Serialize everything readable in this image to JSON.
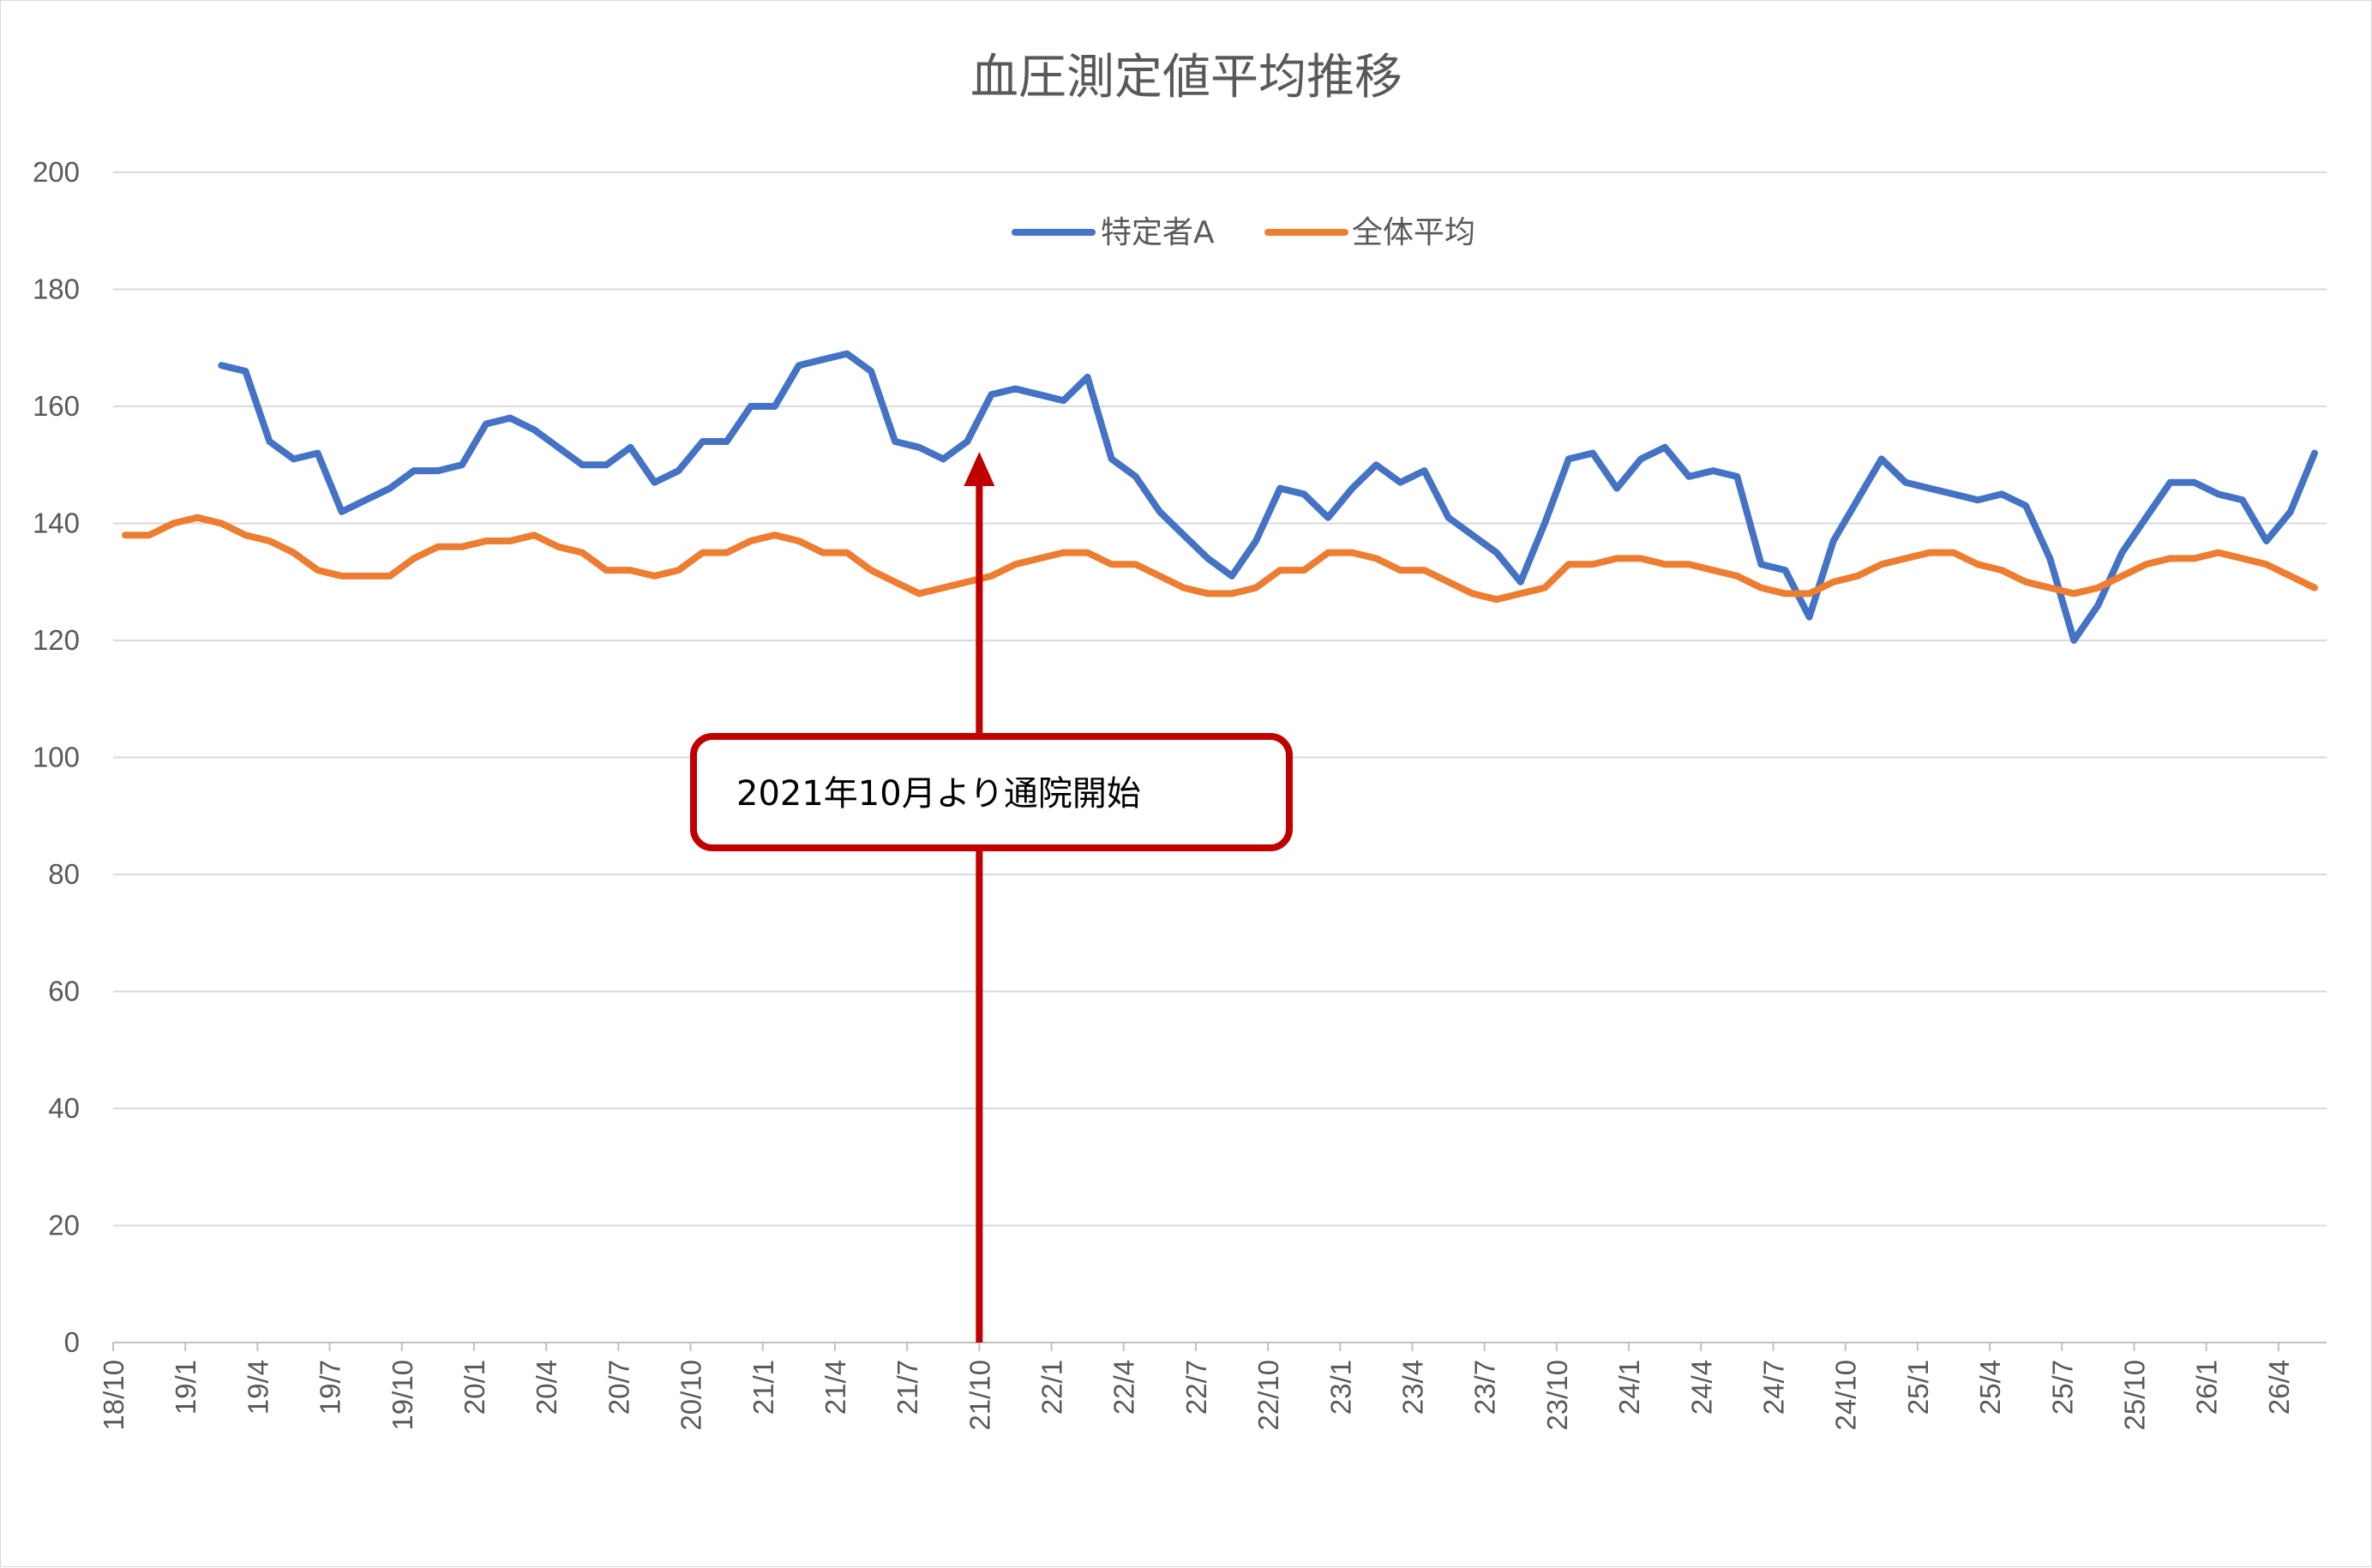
{
  "chart_data": {
    "type": "line",
    "title": "血圧測定値平均推移",
    "xlabel": "",
    "ylabel": "",
    "ylim": [
      0,
      200
    ],
    "yticks": [
      0,
      20,
      40,
      60,
      80,
      100,
      120,
      140,
      160,
      180,
      200
    ],
    "grid": true,
    "legend_position": "top",
    "x": [
      "18/10",
      "18/11",
      "18/12",
      "19/1",
      "19/2",
      "19/3",
      "19/4",
      "19/5",
      "19/6",
      "19/7",
      "19/8",
      "19/9",
      "19/10",
      "19/11",
      "19/12",
      "20/1",
      "20/2",
      "20/3",
      "20/4",
      "20/5",
      "20/6",
      "20/7",
      "20/8",
      "20/9",
      "20/10",
      "20/11",
      "20/12",
      "21/1",
      "21/2",
      "21/3",
      "21/4",
      "21/5",
      "21/6",
      "21/7",
      "21/8",
      "21/9",
      "21/10",
      "21/11",
      "21/12",
      "22/1",
      "22/2",
      "22/3",
      "22/4",
      "22/5",
      "22/6",
      "22/7",
      "22/8",
      "22/9",
      "22/10",
      "22/11",
      "22/12",
      "23/1",
      "23/2",
      "23/3",
      "23/4",
      "23/5",
      "23/6",
      "23/7",
      "23/8",
      "23/9",
      "23/10",
      "23/11",
      "23/12",
      "24/1",
      "24/2",
      "24/3",
      "24/4",
      "24/5",
      "24/6",
      "24/7",
      "24/8",
      "24/9",
      "24/10",
      "24/11",
      "24/12",
      "25/1",
      "25/2",
      "25/3",
      "25/4",
      "25/5",
      "25/6",
      "25/7",
      "25/8",
      "25/9",
      "25/10",
      "25/11",
      "25/12",
      "26/1",
      "26/2",
      "26/3",
      "26/4",
      "26/5"
    ],
    "xtick_labels": [
      "18/10",
      "19/1",
      "19/4",
      "19/7",
      "19/10",
      "20/1",
      "20/4",
      "20/7",
      "20/10",
      "21/1",
      "21/4",
      "21/7",
      "21/10",
      "22/1",
      "22/4",
      "22/7",
      "22/10",
      "23/1",
      "23/4",
      "23/7",
      "23/10",
      "24/1",
      "24/4",
      "24/7",
      "24/10",
      "25/1",
      "25/4",
      "25/7",
      "25/10",
      "26/1",
      "26/4"
    ],
    "series": [
      {
        "name": "特定者A",
        "color": "#4472c4",
        "values": [
          null,
          null,
          null,
          null,
          167,
          166,
          154,
          151,
          152,
          142,
          144,
          146,
          149,
          149,
          150,
          157,
          158,
          156,
          153,
          150,
          150,
          153,
          147,
          149,
          154,
          154,
          160,
          160,
          167,
          168,
          169,
          166,
          154,
          153,
          151,
          154,
          162,
          163,
          162,
          161,
          165,
          151,
          148,
          142,
          138,
          134,
          131,
          137,
          146,
          145,
          141,
          146,
          150,
          147,
          149,
          141,
          138,
          135,
          130,
          140,
          151,
          152,
          146,
          151,
          153,
          148,
          149,
          148,
          133,
          132,
          124,
          137,
          144,
          151,
          147,
          146,
          145,
          144,
          145,
          143,
          134,
          120,
          126,
          135,
          141,
          147,
          147,
          145,
          144,
          137,
          142,
          152
        ]
      },
      {
        "name": "全体平均",
        "color": "#ed7d31",
        "values": [
          138,
          138,
          140,
          141,
          140,
          138,
          137,
          135,
          132,
          131,
          131,
          131,
          134,
          136,
          136,
          137,
          137,
          138,
          136,
          135,
          132,
          132,
          131,
          132,
          135,
          135,
          137,
          138,
          137,
          135,
          135,
          132,
          130,
          128,
          129,
          130,
          131,
          133,
          134,
          135,
          135,
          133,
          133,
          131,
          129,
          128,
          128,
          129,
          132,
          132,
          135,
          135,
          134,
          132,
          132,
          130,
          128,
          127,
          128,
          129,
          133,
          133,
          134,
          134,
          133,
          133,
          132,
          131,
          129,
          128,
          128,
          130,
          131,
          133,
          134,
          135,
          135,
          133,
          132,
          130,
          129,
          128,
          129,
          131,
          133,
          134,
          134,
          135,
          134,
          133,
          131,
          129
        ]
      }
    ],
    "annotation": {
      "text": "2021年10月より通院開始",
      "target_x": "21/10",
      "arrow_color": "#c00000"
    }
  }
}
